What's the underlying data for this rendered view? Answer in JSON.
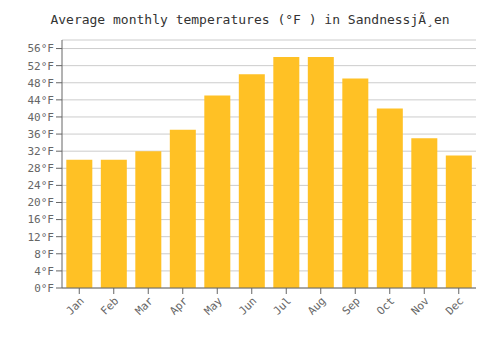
{
  "chart_data": {
    "type": "bar",
    "title": "Average monthly temperatures (°F ) in SandnessjÃ¸en",
    "categories": [
      "Jan",
      "Feb",
      "Mar",
      "Apr",
      "May",
      "Jun",
      "Jul",
      "Aug",
      "Sep",
      "Oct",
      "Nov",
      "Dec"
    ],
    "values": [
      30,
      30,
      32,
      37,
      45,
      50,
      54,
      54,
      49,
      42,
      35,
      31
    ],
    "color": "#FFC125",
    "ylim": [
      0,
      58
    ],
    "yticks": [
      {
        "value": 0,
        "label": "0°F"
      },
      {
        "value": 4,
        "label": "4°F"
      },
      {
        "value": 8,
        "label": "8°F"
      },
      {
        "value": 12,
        "label": "12°F"
      },
      {
        "value": 16,
        "label": "16°F"
      },
      {
        "value": 20,
        "label": "20°F"
      },
      {
        "value": 24,
        "label": "24°F"
      },
      {
        "value": 28,
        "label": "28°F"
      },
      {
        "value": 32,
        "label": "32°F"
      },
      {
        "value": 36,
        "label": "36°F"
      },
      {
        "value": 40,
        "label": "40°F"
      },
      {
        "value": 44,
        "label": "44°F"
      },
      {
        "value": 48,
        "label": "48°F"
      },
      {
        "value": 52,
        "label": "52°F"
      },
      {
        "value": 56,
        "label": "56°F"
      }
    ],
    "grid": true
  }
}
